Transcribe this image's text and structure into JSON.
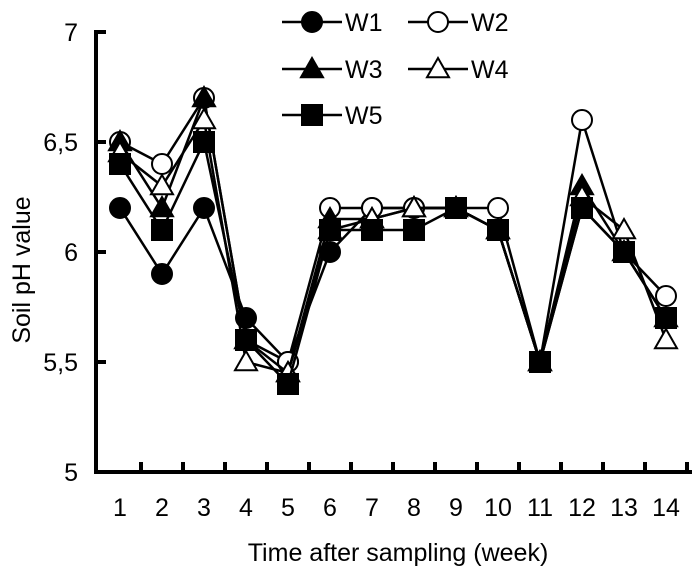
{
  "chart_data": {
    "type": "line",
    "xlabel": "Time after sampling (week)",
    "ylabel": "Soil pH value",
    "x": [
      1,
      2,
      3,
      4,
      5,
      6,
      7,
      8,
      9,
      10,
      11,
      12,
      13,
      14
    ],
    "x_tick_labels": [
      "1",
      "2",
      "3",
      "4",
      "5",
      "6",
      "7",
      "8",
      "9",
      "10",
      "11",
      "12",
      "13",
      "14"
    ],
    "ylim": [
      5,
      7
    ],
    "y_ticks": [
      5,
      5.5,
      6,
      6.5,
      7
    ],
    "y_tick_labels": [
      "5",
      "5,5",
      "6",
      "6,5",
      "7"
    ],
    "grid": false,
    "legend_position": "top-center",
    "series": [
      {
        "name": "W1",
        "marker": "circle",
        "filled": true,
        "values": [
          6.2,
          5.9,
          6.2,
          5.7,
          5.5,
          6.0,
          6.2,
          6.2,
          6.2,
          6.1,
          5.5,
          6.2,
          6.0,
          5.7
        ]
      },
      {
        "name": "W2",
        "marker": "circle",
        "filled": false,
        "values": [
          6.5,
          6.4,
          6.7,
          5.6,
          5.5,
          6.2,
          6.2,
          6.2,
          6.2,
          6.2,
          5.5,
          6.6,
          6.0,
          5.8
        ]
      },
      {
        "name": "W3",
        "marker": "triangle",
        "filled": true,
        "values": [
          6.5,
          6.2,
          6.7,
          5.6,
          5.45,
          6.15,
          6.15,
          6.2,
          6.2,
          6.1,
          5.5,
          6.3,
          6.0,
          5.7
        ]
      },
      {
        "name": "W4",
        "marker": "triangle",
        "filled": false,
        "values": [
          6.45,
          6.3,
          6.6,
          5.5,
          5.45,
          6.1,
          6.15,
          6.2,
          6.2,
          6.1,
          5.5,
          6.25,
          6.1,
          5.6
        ]
      },
      {
        "name": "W5",
        "marker": "square",
        "filled": true,
        "values": [
          6.4,
          6.1,
          6.5,
          5.6,
          5.4,
          6.1,
          6.1,
          6.1,
          6.2,
          6.1,
          5.5,
          6.2,
          6.0,
          5.7
        ]
      }
    ],
    "colors": {
      "line": "#000000",
      "fill": "#000000",
      "hollow": "#ffffff"
    }
  }
}
